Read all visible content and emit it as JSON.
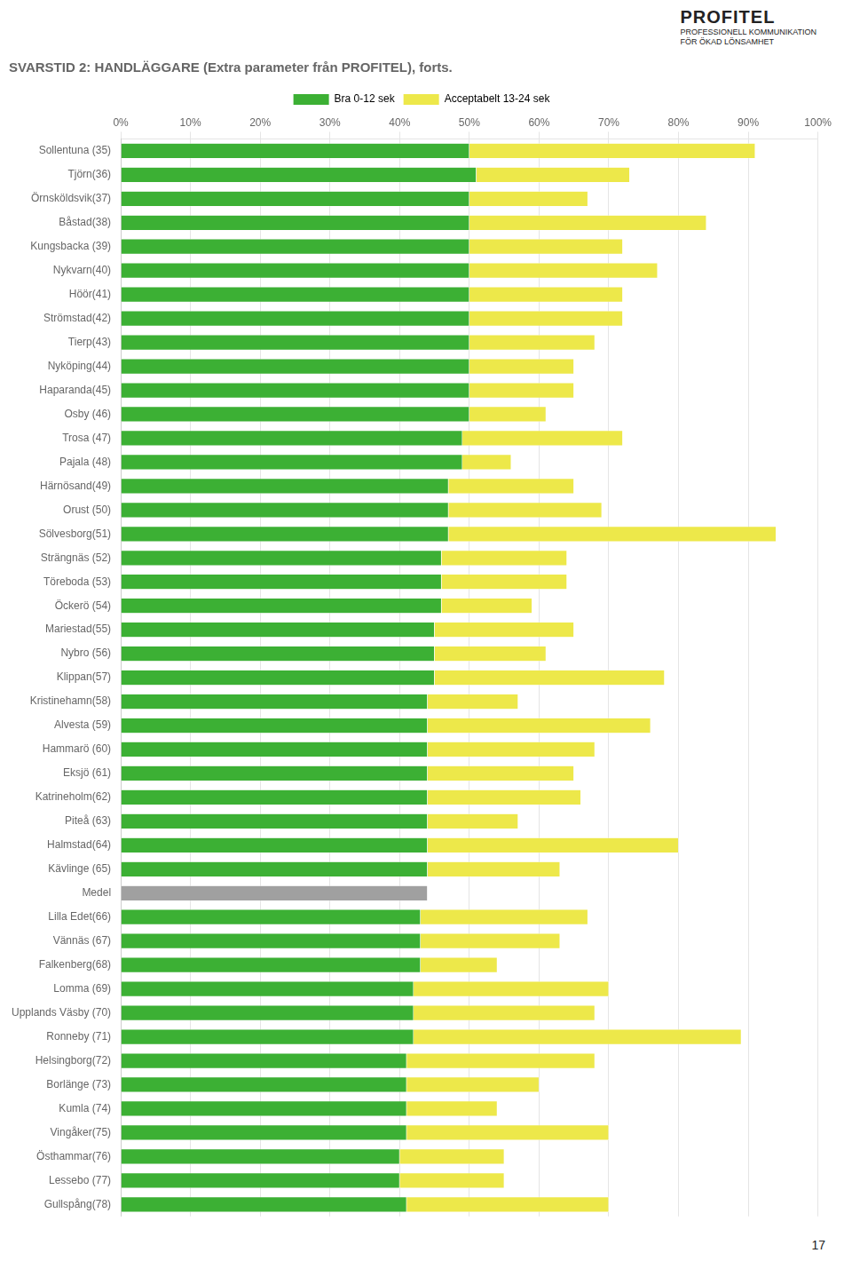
{
  "chart_data": {
    "type": "bar",
    "orientation": "horizontal",
    "stacked": true,
    "title": "SVARSTID 2: HANDLÄGGARE (Extra parameter från PROFITEL), forts.",
    "annotations": [
      "PROFITEL",
      "PROFESSIONELL KOMMUNIKATION",
      "FÖR ÖKAD LÖNSAMHET",
      "17"
    ],
    "categories": [
      "Sollentuna (35)",
      "Tjörn(36)",
      "Örnsköldsvik(37)",
      "Båstad(38)",
      "Kungsbacka (39)",
      "Nykvarn(40)",
      "Höör(41)",
      "Strömstad(42)",
      "Tierp(43)",
      "Nyköping(44)",
      "Haparanda(45)",
      "Osby (46)",
      "Trosa (47)",
      "Pajala (48)",
      "Härnösand(49)",
      "Orust (50)",
      "Sölvesborg(51)",
      "Strängnäs (52)",
      "Töreboda (53)",
      "Öckerö (54)",
      "Mariestad(55)",
      "Nybro (56)",
      "Klippan(57)",
      "Kristinehamn(58)",
      "Alvesta (59)",
      "Hammarö (60)",
      "Eksjö (61)",
      "Katrineholm(62)",
      "Piteå (63)",
      "Halmstad(64)",
      "Kävlinge (65)",
      "Medel",
      "Lilla Edet(66)",
      "Vännäs (67)",
      "Falkenberg(68)",
      "Lomma (69)",
      "Upplands Väsby (70)",
      "Ronneby (71)",
      "Helsingborg(72)",
      "Borlänge (73)",
      "Kumla (74)",
      "Vingåker(75)",
      "Östhammar(76)",
      "Lessebo (77)",
      "Gullspång(78)"
    ],
    "series": [
      {
        "name": "Bra 0-12 sek",
        "color": "#3CB034",
        "colors": [
          "#3CB034",
          "#3CB034",
          "#3CB034",
          "#3CB034",
          "#3CB034",
          "#3CB034",
          "#3CB034",
          "#3CB034",
          "#3CB034",
          "#3CB034",
          "#3CB034",
          "#3CB034",
          "#3CB034",
          "#3CB034",
          "#3CB034",
          "#3CB034",
          "#3CB034",
          "#3CB034",
          "#3CB034",
          "#3CB034",
          "#3CB034",
          "#3CB034",
          "#3CB034",
          "#3CB034",
          "#3CB034",
          "#3CB034",
          "#3CB034",
          "#3CB034",
          "#3CB034",
          "#3CB034",
          "#3CB034",
          "#A0A0A0",
          "#3CB034",
          "#3CB034",
          "#3CB034",
          "#3CB034",
          "#3CB034",
          "#3CB034",
          "#3CB034",
          "#3CB034",
          "#3CB034",
          "#3CB034",
          "#3CB034",
          "#3CB034",
          "#3CB034"
        ],
        "values": [
          50,
          51,
          50,
          50,
          50,
          50,
          50,
          50,
          50,
          50,
          50,
          50,
          49,
          49,
          47,
          47,
          47,
          46,
          46,
          46,
          45,
          45,
          45,
          44,
          44,
          44,
          44,
          44,
          44,
          44,
          44,
          44,
          43,
          43,
          43,
          42,
          42,
          42,
          41,
          41,
          41,
          41,
          40,
          40,
          41
        ]
      },
      {
        "name": "Acceptabelt 13-24 sek",
        "color": "#EDE84A",
        "values": [
          41,
          22,
          17,
          34,
          22,
          27,
          22,
          22,
          18,
          15,
          15,
          11,
          23,
          7,
          18,
          22,
          47,
          18,
          18,
          13,
          20,
          16,
          33,
          13,
          32,
          24,
          21,
          22,
          13,
          36,
          19,
          0,
          24,
          20,
          11,
          28,
          26,
          47,
          27,
          19,
          13,
          29,
          15,
          15,
          29
        ]
      }
    ],
    "xlim": [
      0,
      100
    ],
    "xticks": [
      {
        "value": 0,
        "label": "0%"
      },
      {
        "value": 10,
        "label": "10%"
      },
      {
        "value": 20,
        "label": "20%"
      },
      {
        "value": 30,
        "label": "30%"
      },
      {
        "value": 40,
        "label": "40%"
      },
      {
        "value": 50,
        "label": "50%"
      },
      {
        "value": 60,
        "label": "60%"
      },
      {
        "value": 70,
        "label": "70%"
      },
      {
        "value": 80,
        "label": "80%"
      },
      {
        "value": 90,
        "label": "90%"
      },
      {
        "value": 100,
        "label": "100%"
      }
    ],
    "grid": true,
    "legend": "top"
  }
}
